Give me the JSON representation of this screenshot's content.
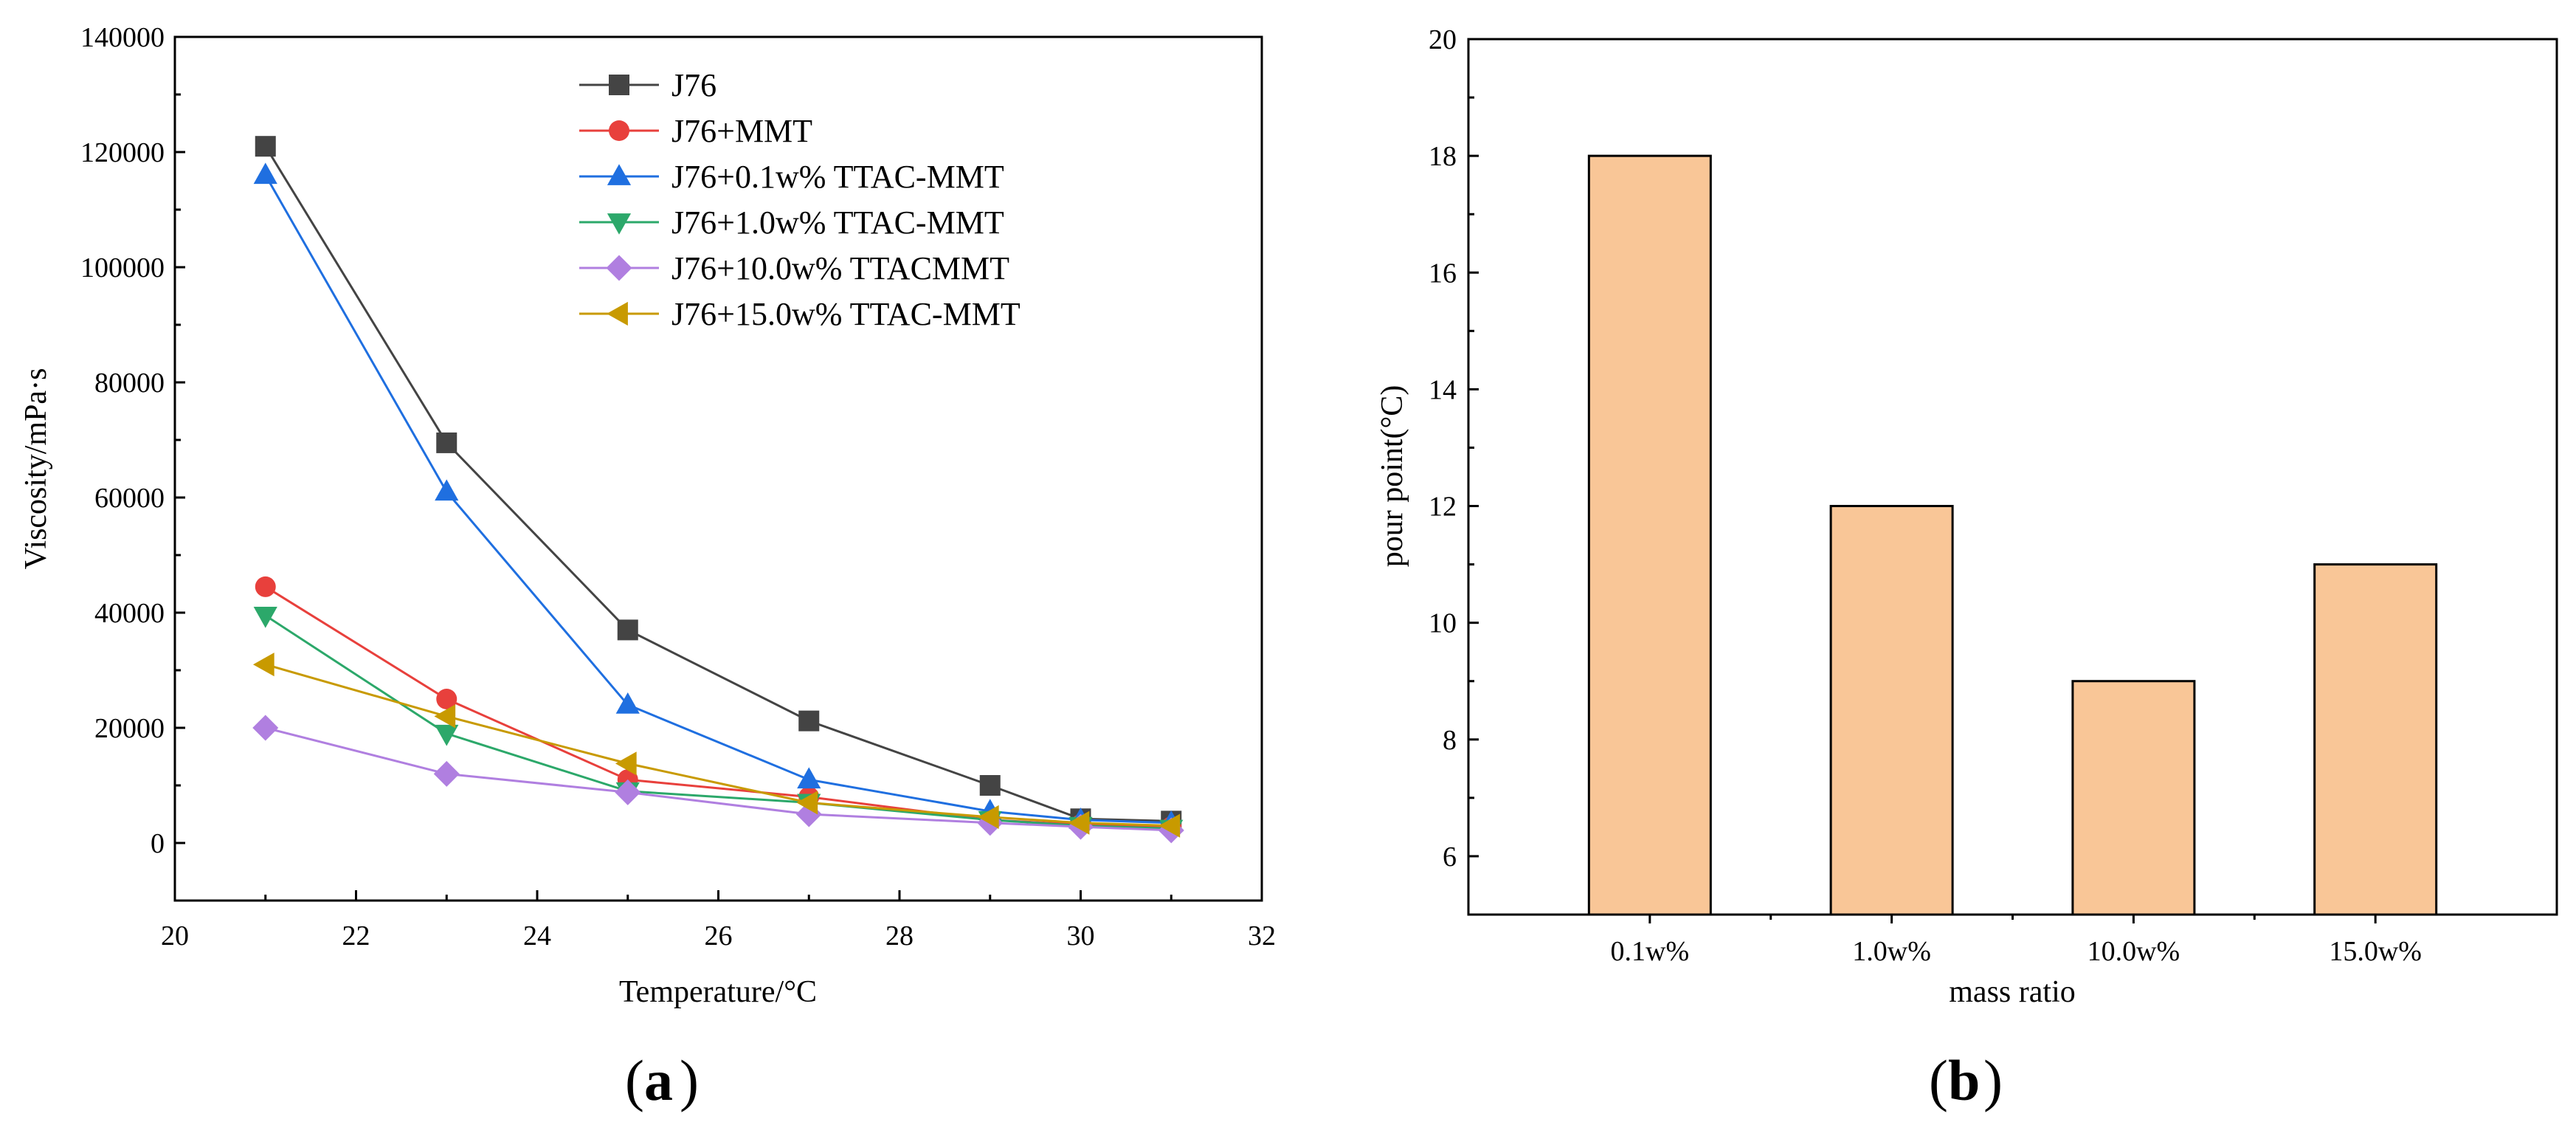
{
  "chart_data": [
    {
      "type": "line",
      "panel_label": "a",
      "xlabel": "Temperature/°C",
      "ylabel": "Viscosity/mPa·s",
      "xlim": [
        20,
        32
      ],
      "ylim": [
        -10000,
        140000
      ],
      "xticks": [
        20,
        22,
        24,
        26,
        28,
        30,
        32
      ],
      "yticks": [
        0,
        20000,
        40000,
        60000,
        80000,
        100000,
        120000,
        140000
      ],
      "legend_position": "top-right",
      "x": [
        21,
        23,
        25,
        27,
        29,
        30,
        31
      ],
      "series": [
        {
          "name": "J76",
          "color": "#444444",
          "marker": "square",
          "values": [
            121000,
            69500,
            37000,
            21200,
            10000,
            4200,
            3800
          ]
        },
        {
          "name": "J76+MMT",
          "color": "#e8403c",
          "marker": "circle",
          "values": [
            44500,
            25000,
            11000,
            8000,
            4000,
            3200,
            2800
          ]
        },
        {
          "name": "J76+0.1w% TTAC-MMT",
          "color": "#1f6fe0",
          "marker": "triangle-up",
          "values": [
            116000,
            61000,
            24000,
            11000,
            5500,
            4000,
            3500
          ]
        },
        {
          "name": "J76+1.0w% TTAC-MMT",
          "color": "#2ca86a",
          "marker": "triangle-down",
          "values": [
            39500,
            19000,
            9000,
            7000,
            4000,
            3000,
            2500
          ]
        },
        {
          "name": "J76+10.0w% TTACMMT",
          "color": "#b07fe0",
          "marker": "diamond",
          "values": [
            20000,
            12000,
            8800,
            5000,
            3500,
            2800,
            2200
          ]
        },
        {
          "name": "J76+15.0w% TTAC-MMT",
          "color": "#c89a00",
          "marker": "triangle-left",
          "values": [
            31000,
            22000,
            13800,
            7000,
            4500,
            3500,
            3000
          ]
        }
      ]
    },
    {
      "type": "bar",
      "panel_label": "b",
      "xlabel": "mass ratio",
      "ylabel": "pour point(°C)",
      "ylim": [
        5,
        20
      ],
      "yticks": [
        6,
        8,
        10,
        12,
        14,
        16,
        18,
        20
      ],
      "categories": [
        "0.1w%",
        "1.0w%",
        "10.0w%",
        "15.0w%"
      ],
      "values": [
        18,
        12,
        9,
        11
      ],
      "color": "#f9c697"
    }
  ]
}
